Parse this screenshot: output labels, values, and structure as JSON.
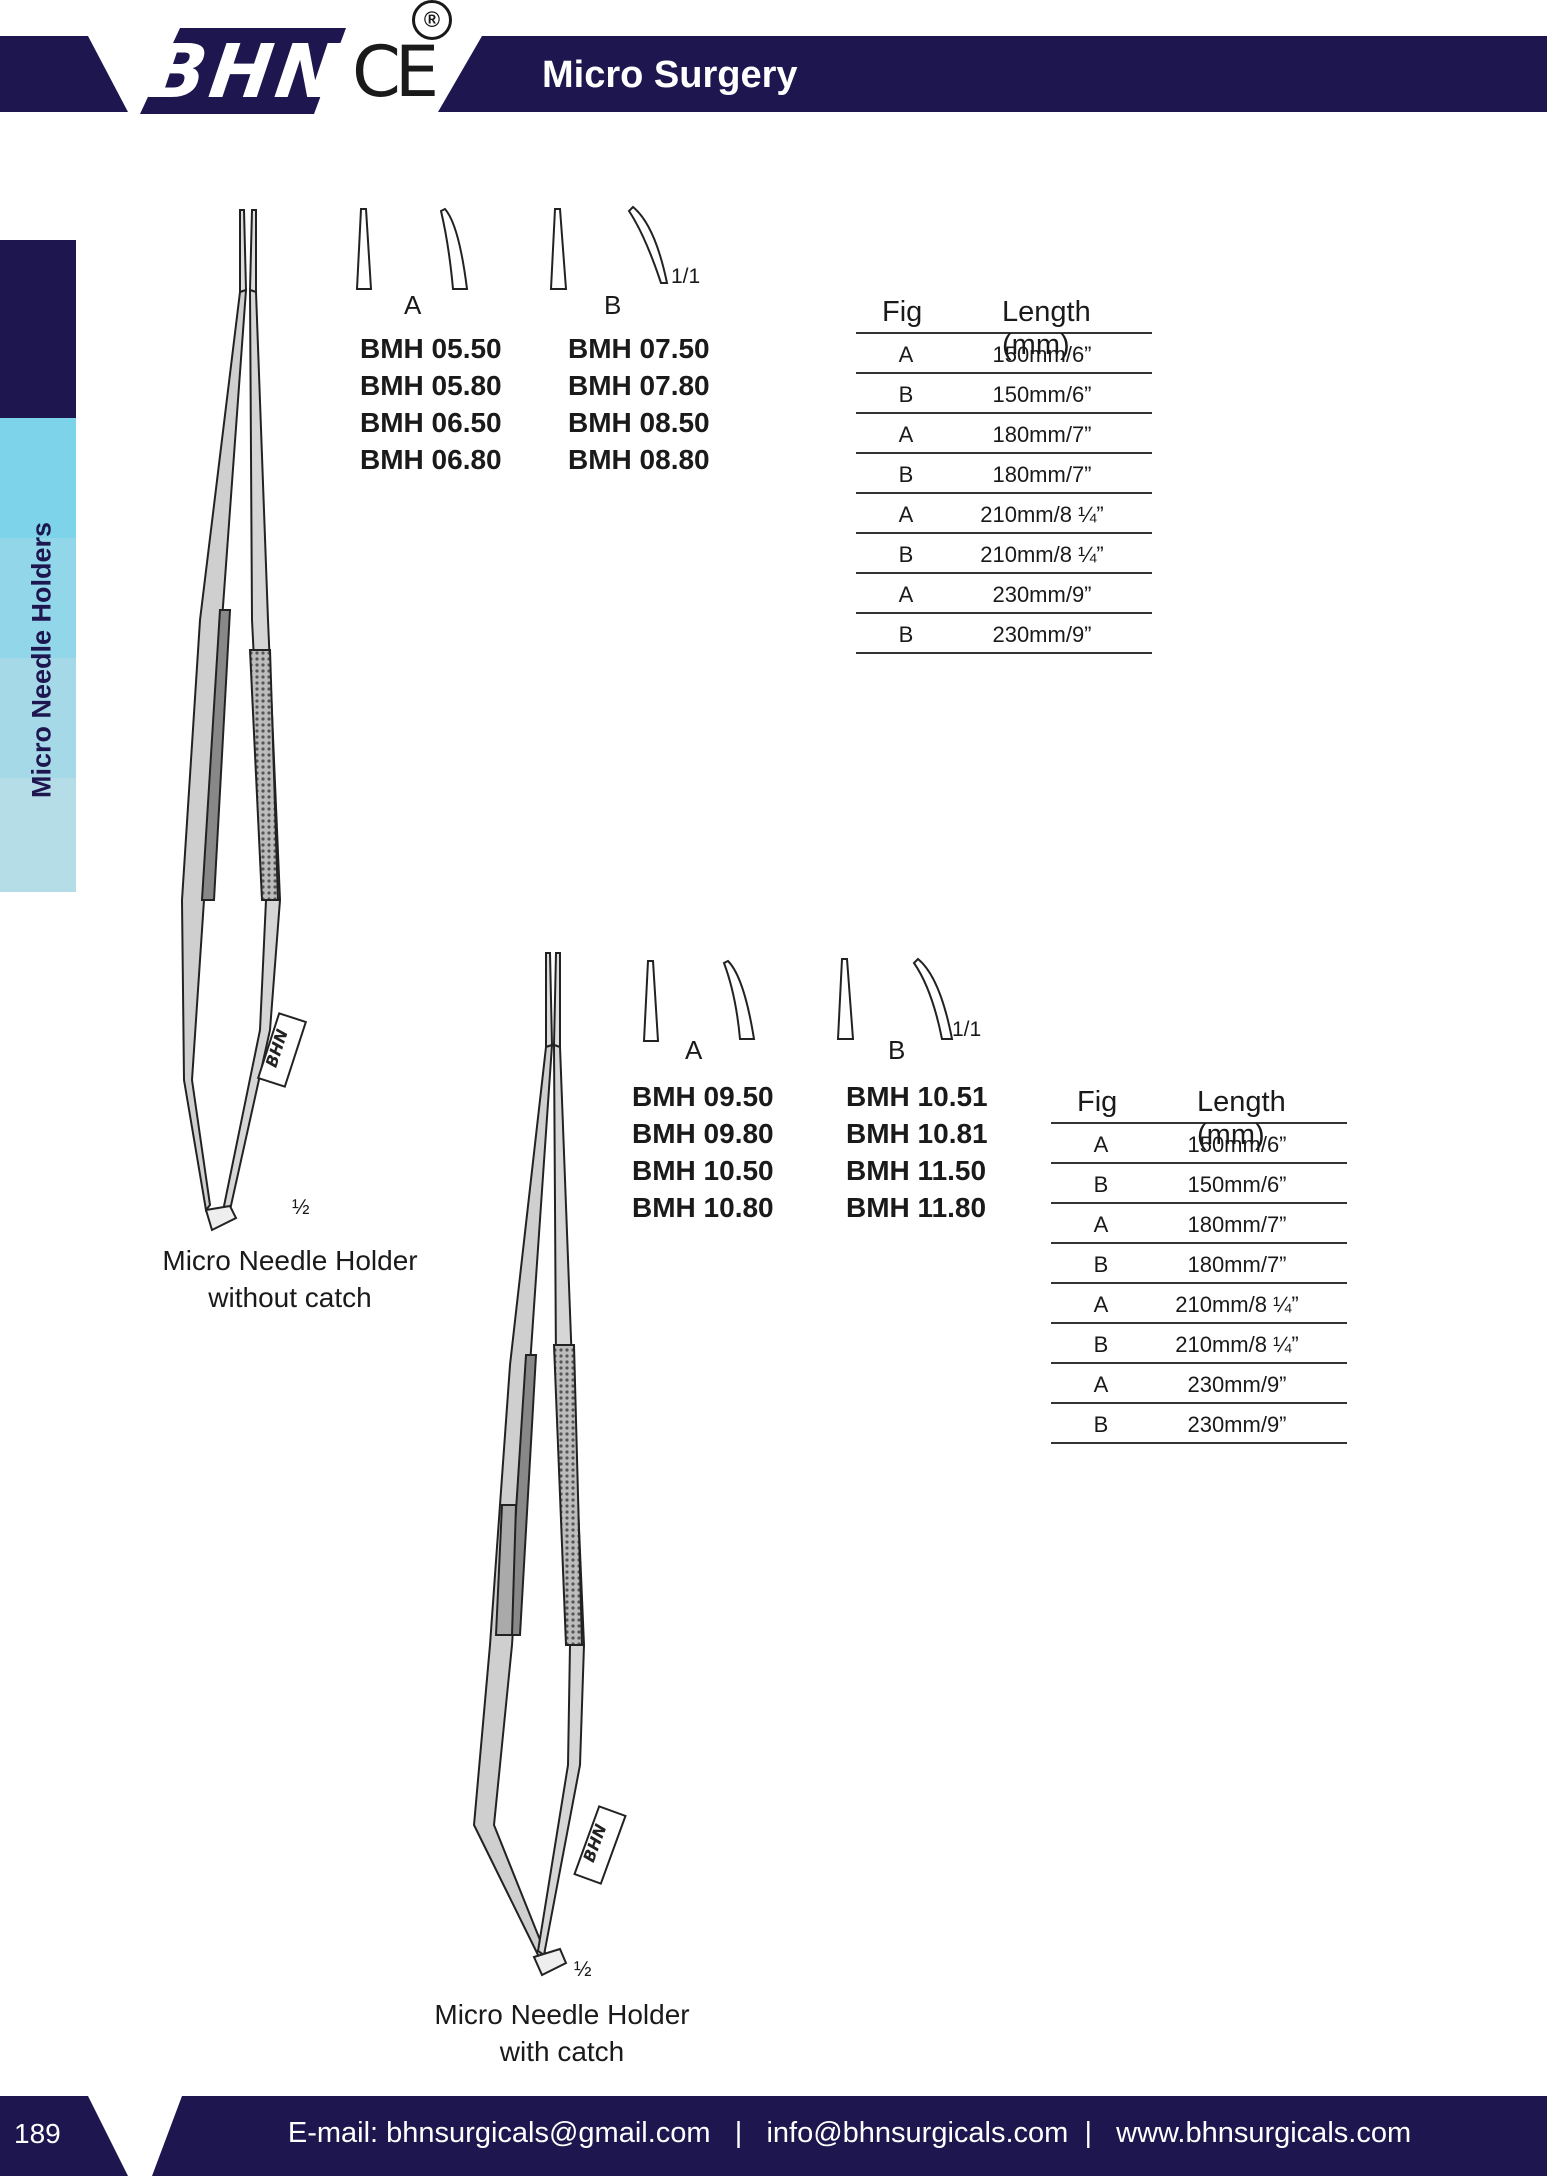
{
  "header": {
    "brand": "BHN",
    "ce": "CE",
    "registered": "®",
    "title": "Micro Surgery"
  },
  "side_tab": {
    "label": "Micro Needle Holders"
  },
  "products": [
    {
      "tip_labels": {
        "a": "A",
        "b": "B"
      },
      "scale": "1/1",
      "codes_a": [
        "BMH 05.50",
        "BMH 05.80",
        "BMH 06.50",
        "BMH 06.80"
      ],
      "codes_b": [
        "BMH 07.50",
        "BMH 07.80",
        "BMH 08.50",
        "BMH 08.80"
      ],
      "table": {
        "headers": [
          "Fig",
          "Length (mm)"
        ],
        "rows": [
          [
            "A",
            "150mm/6”"
          ],
          [
            "B",
            "150mm/6”"
          ],
          [
            "A",
            "180mm/7”"
          ],
          [
            "B",
            "180mm/7”"
          ],
          [
            "A",
            "210mm/8 ¼”"
          ],
          [
            "B",
            "210mm/8 ¼”"
          ],
          [
            "A",
            "230mm/9”"
          ],
          [
            "B",
            "230mm/9”"
          ]
        ]
      },
      "instrument_mark": "BHN",
      "instrument_scale": "½",
      "caption": [
        "Micro Needle Holder",
        "without catch"
      ]
    },
    {
      "tip_labels": {
        "a": "A",
        "b": "B"
      },
      "scale": "1/1",
      "codes_a": [
        "BMH 09.50",
        "BMH 09.80",
        "BMH 10.50",
        "BMH 10.80"
      ],
      "codes_b": [
        "BMH 10.51",
        "BMH 10.81",
        "BMH 11.50",
        "BMH 11.80"
      ],
      "table": {
        "headers": [
          "Fig",
          "Length (mm)"
        ],
        "rows": [
          [
            "A",
            "150mm/6”"
          ],
          [
            "B",
            "150mm/6”"
          ],
          [
            "A",
            "180mm/7”"
          ],
          [
            "B",
            "180mm/7”"
          ],
          [
            "A",
            "210mm/8 ¼”"
          ],
          [
            "B",
            "210mm/8 ¼”"
          ],
          [
            "A",
            "230mm/9”"
          ],
          [
            "B",
            "230mm/9”"
          ]
        ]
      },
      "instrument_mark": "BHN",
      "instrument_scale": "½",
      "caption": [
        "Micro Needle Holder",
        "with catch"
      ]
    }
  ],
  "footer": {
    "page_number": "189",
    "email_label": "E-mail: bhnsurgicals@gmail.com",
    "sep": "|",
    "email2": "info@bhnsurgicals.com",
    "website": "www.bhnsurgicals.com"
  },
  "colors": {
    "navy": "#1e174f",
    "cyan": "#7dd3ea"
  }
}
